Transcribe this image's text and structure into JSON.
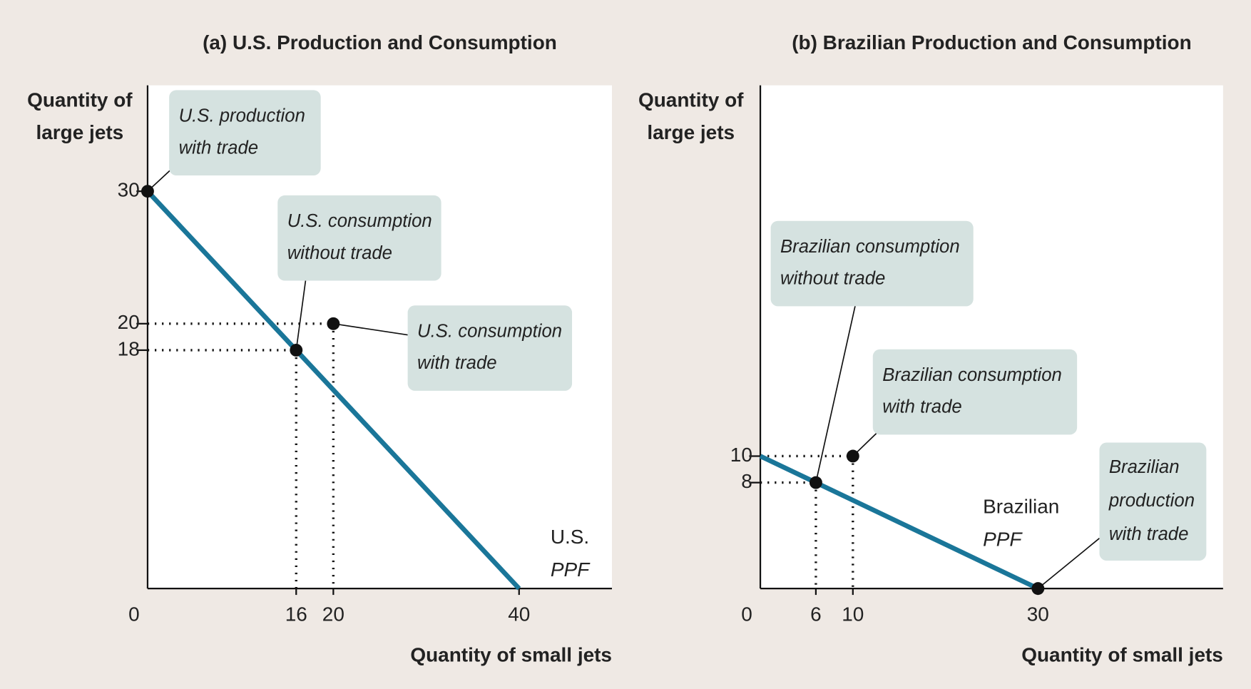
{
  "chart_data": [
    {
      "type": "line",
      "title": "(a) U.S. Production and Consumption",
      "y_label": [
        "Quantity of",
        "large jets"
      ],
      "x_label": "Quantity of small jets",
      "xlim": [
        0,
        50
      ],
      "ylim": [
        0,
        38
      ],
      "xticks": [
        0,
        16,
        20,
        40
      ],
      "yticks": [
        30,
        20,
        18
      ],
      "series": [
        {
          "name": [
            "U.S.",
            "PPF"
          ],
          "color": "#1a7699",
          "x": [
            0,
            40
          ],
          "values": [
            30,
            0
          ]
        }
      ],
      "points": [
        {
          "label": [
            "U.S. production",
            "with trade"
          ],
          "x": 0,
          "y": 30,
          "guide_lines": false
        },
        {
          "label": [
            "U.S. consumption",
            "without trade"
          ],
          "x": 16,
          "y": 18,
          "guide_lines": true
        },
        {
          "label": [
            "U.S. consumption",
            "with trade"
          ],
          "x": 20,
          "y": 20,
          "guide_lines": true
        }
      ]
    },
    {
      "type": "line",
      "title": "(b) Brazilian Production and Consumption",
      "y_label": [
        "Quantity of",
        "large jets"
      ],
      "x_label": "Quantity of small jets",
      "xlim": [
        0,
        50
      ],
      "ylim": [
        0,
        38
      ],
      "xticks": [
        0,
        6,
        10,
        30
      ],
      "yticks": [
        10,
        8
      ],
      "series": [
        {
          "name": [
            "Brazilian",
            "PPF"
          ],
          "color": "#1a7699",
          "x": [
            0,
            30
          ],
          "values": [
            10,
            0
          ]
        }
      ],
      "points": [
        {
          "label": [
            "Brazilian consumption",
            "without trade"
          ],
          "x": 6,
          "y": 8,
          "guide_lines": true
        },
        {
          "label": [
            "Brazilian consumption",
            "with trade"
          ],
          "x": 10,
          "y": 10,
          "guide_lines": true
        },
        {
          "label": [
            "Brazilian",
            "production",
            "with trade"
          ],
          "x": 30,
          "y": 0,
          "guide_lines": false
        }
      ]
    }
  ]
}
